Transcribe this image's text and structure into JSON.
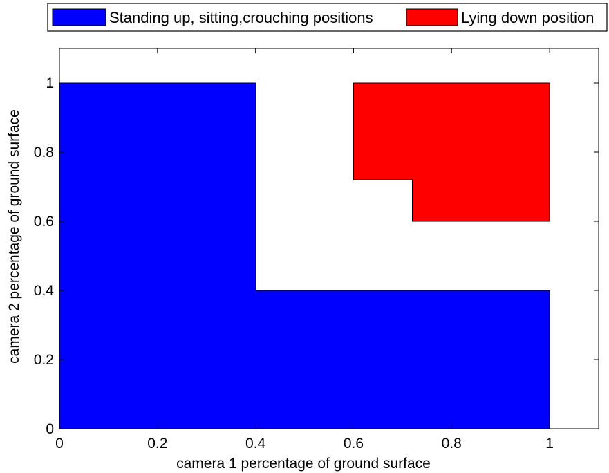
{
  "chart_data": {
    "type": "area",
    "title": "",
    "xlabel": "camera 1 percentage of ground surface",
    "ylabel": "camera 2 percentage of ground surface",
    "xlim": [
      0,
      1.1
    ],
    "ylim": [
      0,
      1.1
    ],
    "xticks": [
      0,
      0.2,
      0.4,
      0.6,
      0.8,
      1
    ],
    "yticks": [
      0,
      0.2,
      0.4,
      0.6,
      0.8,
      1
    ],
    "xtick_labels": [
      "0",
      "0.2",
      "0.4",
      "0.6",
      "0.8",
      "1"
    ],
    "ytick_labels": [
      "0",
      "0.2",
      "0.4",
      "0.6",
      "0.8",
      "1"
    ],
    "grid": false,
    "legend_position": "top, outside plot, horizontal",
    "series": [
      {
        "name": "Standing up, sitting,crouching positions",
        "color": "#0000ff",
        "polygon": [
          [
            0,
            0
          ],
          [
            0,
            1
          ],
          [
            0.4,
            1
          ],
          [
            0.4,
            0.4
          ],
          [
            1,
            0.4
          ],
          [
            1,
            0
          ]
        ]
      },
      {
        "name": "Lying down position",
        "color": "#ff0000",
        "polygon": [
          [
            0.6,
            1
          ],
          [
            1,
            1
          ],
          [
            1,
            0.6
          ],
          [
            0.72,
            0.6
          ],
          [
            0.72,
            0.72
          ],
          [
            0.6,
            0.72
          ]
        ]
      }
    ]
  }
}
